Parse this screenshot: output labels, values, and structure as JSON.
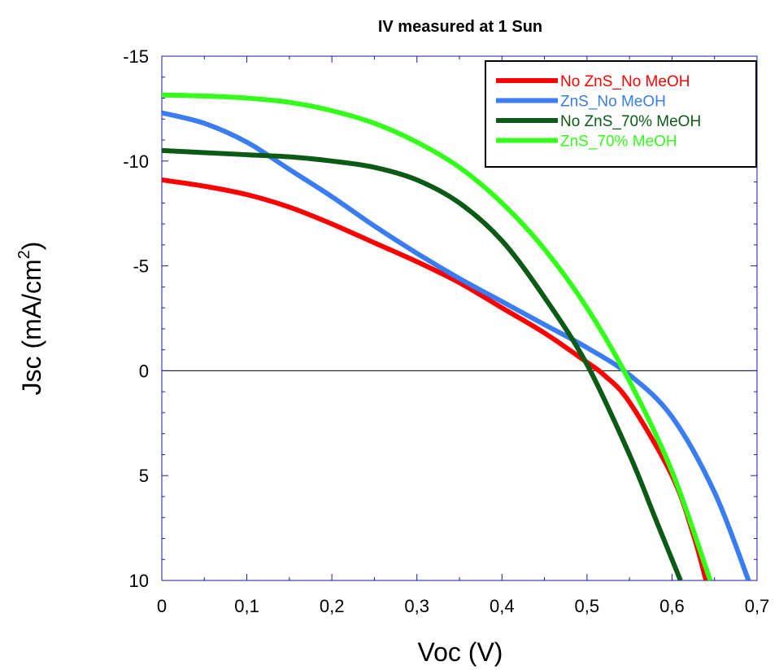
{
  "chart_data": {
    "type": "line",
    "title": "IV measured at 1 Sun",
    "xlabel": "Voc (V)",
    "ylabel": "Jsc (mA/cm",
    "ylabel_superscript": "2",
    "ylabel_suffix": ")",
    "xlim": [
      0,
      0.7
    ],
    "ylim": [
      10,
      -15
    ],
    "x_ticks": [
      0,
      0.1,
      0.2,
      0.3,
      0.4,
      0.5,
      0.6,
      0.7
    ],
    "x_tick_labels": [
      "0",
      "0,1",
      "0,2",
      "0,3",
      "0,4",
      "0,5",
      "0,6",
      "0,7"
    ],
    "y_ticks": [
      -15,
      -10,
      -5,
      0,
      5,
      10
    ],
    "y_tick_labels": [
      "-15",
      "-10",
      "-5",
      "0",
      "5",
      "10"
    ],
    "grid": false,
    "zero_line": true,
    "legend_position": "top-right",
    "series": [
      {
        "name": "No ZnS_No MeOH",
        "color": "#ff0000",
        "x": [
          0,
          0.05,
          0.1,
          0.15,
          0.2,
          0.25,
          0.3,
          0.35,
          0.4,
          0.45,
          0.5,
          0.52,
          0.55,
          0.6,
          0.625,
          0.64
        ],
        "y": [
          -9.1,
          -8.8,
          -8.4,
          -7.8,
          -7.0,
          -6.1,
          -5.2,
          -4.2,
          -3.0,
          -1.8,
          -0.4,
          0.2,
          1.5,
          5.0,
          7.8,
          10
        ]
      },
      {
        "name": "ZnS_No MeOH",
        "color": "#3a7cf2",
        "x": [
          0,
          0.05,
          0.1,
          0.15,
          0.2,
          0.25,
          0.3,
          0.35,
          0.4,
          0.45,
          0.5,
          0.55,
          0.6,
          0.65,
          0.69
        ],
        "y": [
          -12.3,
          -11.8,
          -10.9,
          -9.6,
          -8.3,
          -6.9,
          -5.6,
          -4.4,
          -3.3,
          -2.2,
          -1.1,
          0.2,
          2.2,
          5.8,
          10
        ]
      },
      {
        "name": "No ZnS_70% MeOH",
        "color": "#0b5a16",
        "x": [
          0,
          0.05,
          0.1,
          0.15,
          0.2,
          0.25,
          0.3,
          0.35,
          0.4,
          0.45,
          0.5,
          0.55,
          0.58,
          0.61
        ],
        "y": [
          -10.5,
          -10.4,
          -10.3,
          -10.2,
          -10.0,
          -9.7,
          -9.1,
          -8.0,
          -6.2,
          -3.5,
          -0.3,
          4.0,
          7.0,
          10
        ]
      },
      {
        "name": "ZnS_70% MeOH",
        "color": "#33ff1a",
        "x": [
          0,
          0.05,
          0.1,
          0.15,
          0.2,
          0.25,
          0.3,
          0.35,
          0.4,
          0.45,
          0.5,
          0.55,
          0.6,
          0.645
        ],
        "y": [
          -13.15,
          -13.1,
          -13.0,
          -12.8,
          -12.4,
          -11.8,
          -10.9,
          -9.7,
          -8.0,
          -5.8,
          -3.0,
          0.5,
          4.8,
          10
        ]
      }
    ]
  }
}
